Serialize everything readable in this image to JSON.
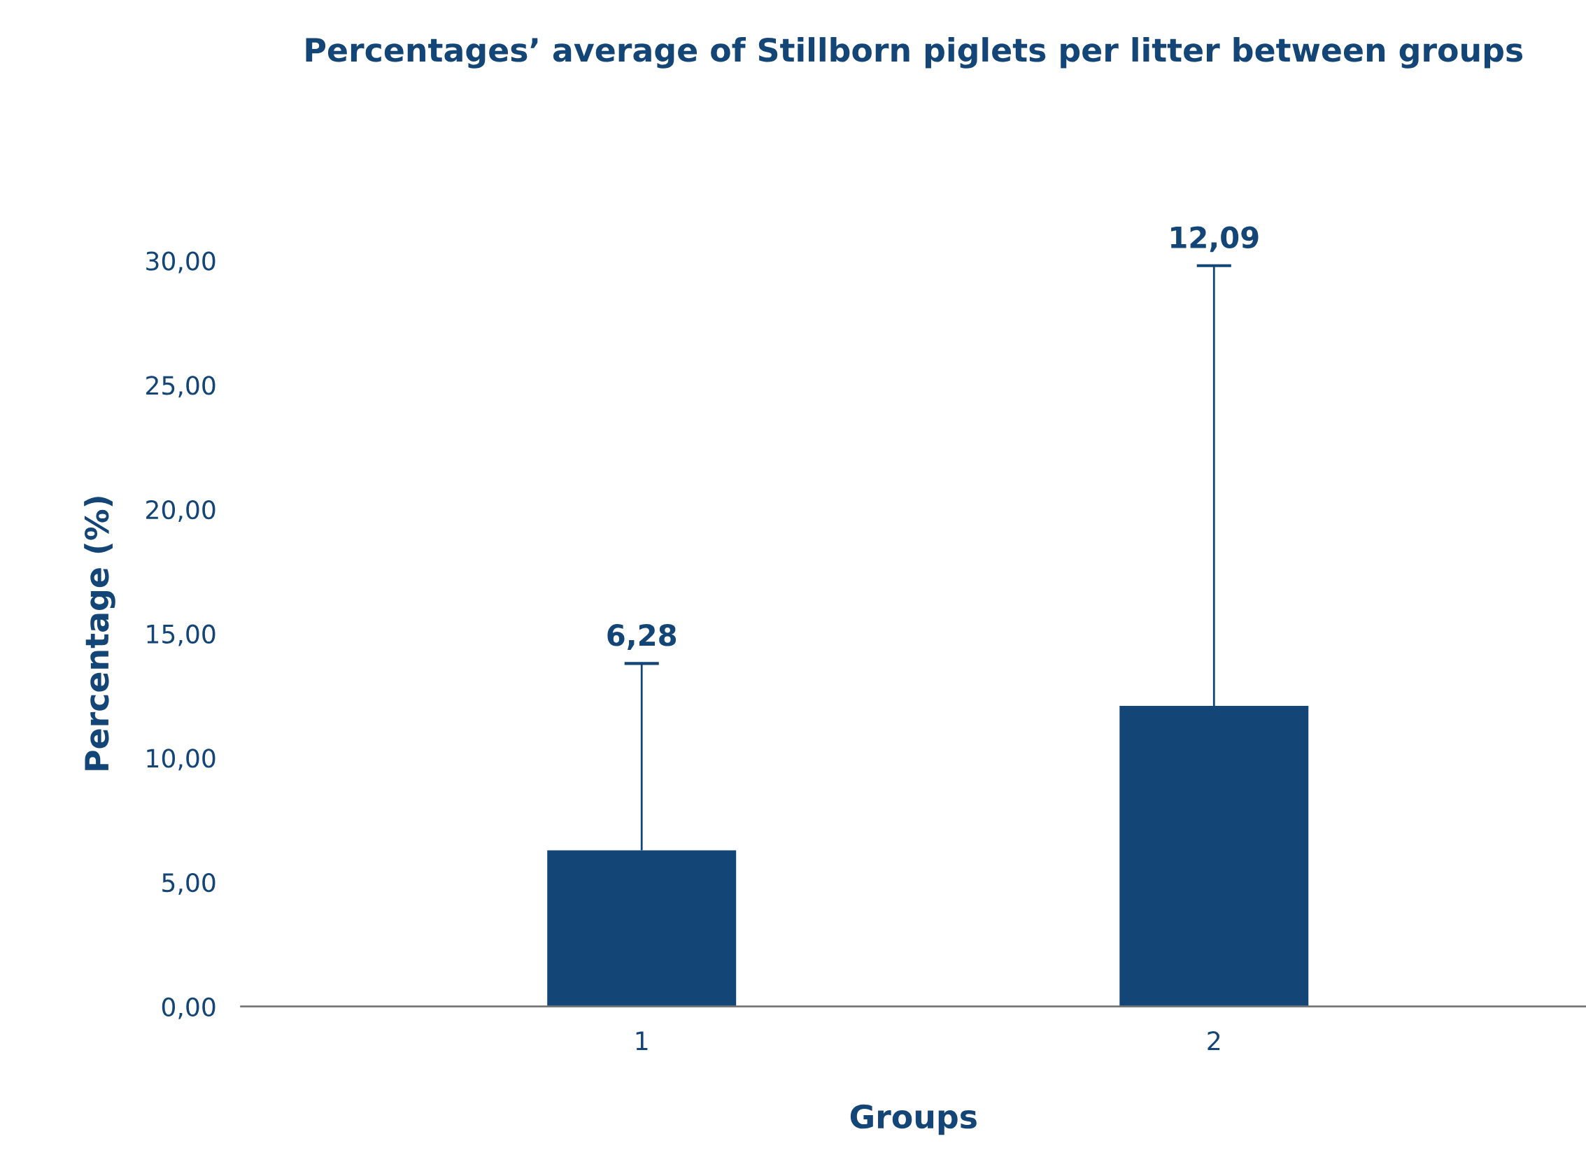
{
  "chart_data": {
    "type": "bar",
    "title": "Percentages’ average of Stillborn piglets per litter between groups",
    "xlabel": "Groups",
    "ylabel": "Percentage (%)",
    "categories": [
      "1",
      "2"
    ],
    "values": [
      6.28,
      12.09
    ],
    "errors": [
      [
        6.28,
        13.8
      ],
      [
        12.09,
        29.8
      ]
    ],
    "annotations": [
      {
        "text": "6,28",
        "x": "1",
        "y": 13.8
      },
      {
        "text": "12,09",
        "x": "2",
        "y": 29.8
      }
    ],
    "color": "#134577",
    "ylim": [
      0,
      30
    ],
    "yticks": [
      {
        "value": 0,
        "label": "0,00"
      },
      {
        "value": 5,
        "label": "5,00"
      },
      {
        "value": 10,
        "label": "10,00"
      },
      {
        "value": 15,
        "label": "15,00"
      },
      {
        "value": 20,
        "label": "20,00"
      },
      {
        "value": 25,
        "label": "25,00"
      },
      {
        "value": 30,
        "label": "30,00"
      }
    ],
    "grid": false,
    "legend": false
  }
}
